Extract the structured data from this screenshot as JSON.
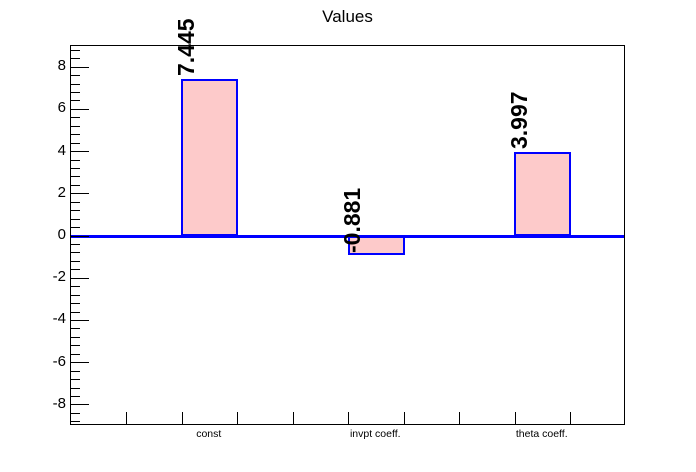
{
  "colors": {
    "background": "#ffffff",
    "bar_fill": "#fdcaca",
    "bar_border": "#0000ff",
    "zero_line": "#0000ff",
    "axis_line": "#000000",
    "text": "#000000"
  },
  "chart_data": {
    "type": "bar",
    "title": "Values",
    "categories": [
      "const",
      "invpt coeff.",
      "theta coeff."
    ],
    "values": [
      7.445,
      -0.881,
      3.997
    ],
    "value_labels": [
      "7.445",
      "-0.881",
      "3.997"
    ],
    "value_label_rotation_deg": 90,
    "xlabel": "",
    "ylabel": "",
    "grid": false,
    "legend": false,
    "y_axis": {
      "min": -9,
      "max": 9,
      "major_ticks": [
        8,
        6,
        4,
        2,
        0,
        -2,
        -4,
        -6,
        -8
      ],
      "major_tick_labels": [
        "8",
        "6",
        "4",
        "2",
        "0",
        "-2",
        "-4",
        "-6",
        "-8"
      ],
      "minor_tick_step": 0.4
    },
    "x_axis": {
      "divisions": 10
    }
  }
}
